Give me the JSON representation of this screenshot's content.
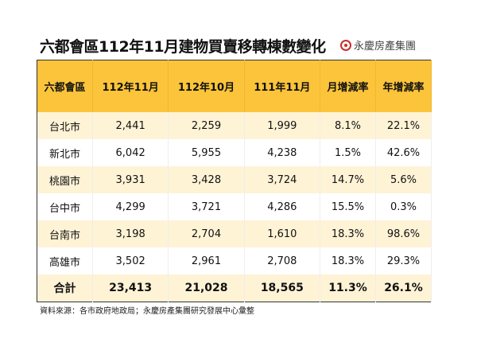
{
  "title": "六都會區112年11月建物買賣移轉棟數變化",
  "brand": "永慶房產集團",
  "colors": {
    "header": "#fbc43a",
    "stripe": "#fff3d6",
    "logo": "#c8302b"
  },
  "table": {
    "headers": [
      "六都會區",
      "112年11月",
      "112年10月",
      "111年11月",
      "月增減率",
      "年增減率"
    ],
    "rows": [
      [
        "台北市",
        "2,441",
        "2,259",
        "1,999",
        "8.1%",
        "22.1%"
      ],
      [
        "新北市",
        "6,042",
        "5,955",
        "4,238",
        "1.5%",
        "42.6%"
      ],
      [
        "桃園市",
        "3,931",
        "3,428",
        "3,724",
        "14.7%",
        "5.6%"
      ],
      [
        "台中市",
        "4,299",
        "3,721",
        "4,286",
        "15.5%",
        "0.3%"
      ],
      [
        "台南市",
        "3,198",
        "2,704",
        "1,610",
        "18.3%",
        "98.6%"
      ],
      [
        "高雄市",
        "3,502",
        "2,961",
        "2,708",
        "18.3%",
        "29.3%"
      ]
    ],
    "total": [
      "合計",
      "23,413",
      "21,028",
      "18,565",
      "11.3%",
      "26.1%"
    ]
  },
  "source": "資料來源：各市政府地政局；永慶房產集團研究發展中心彙整"
}
